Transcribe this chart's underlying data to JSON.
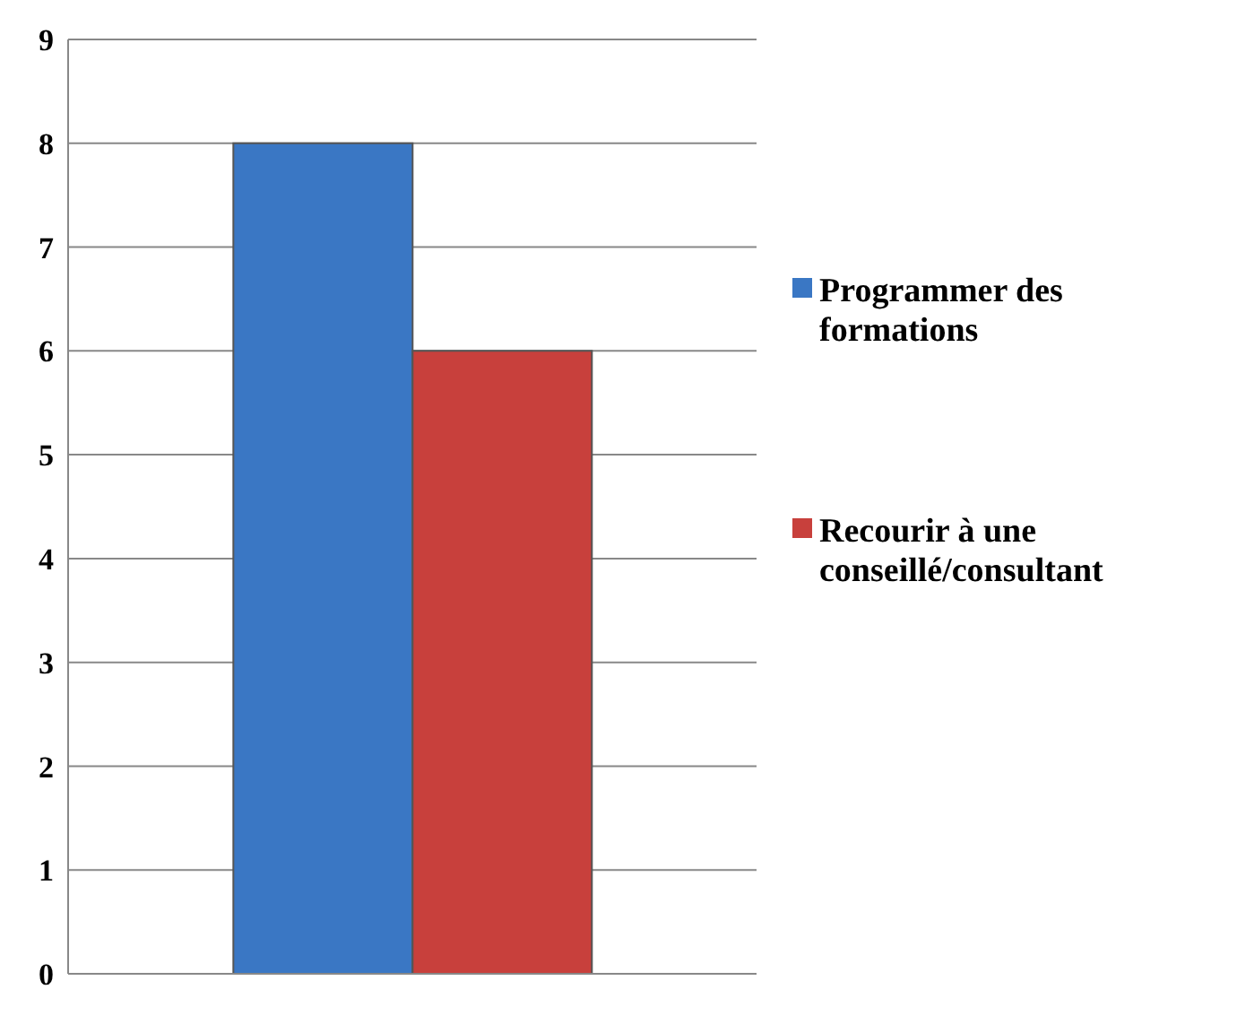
{
  "chart_data": {
    "type": "bar",
    "categories": [
      null
    ],
    "series": [
      {
        "name": "Programmer des formations",
        "color": "#3a77c4",
        "values": [
          8
        ]
      },
      {
        "name": "Recourir à une conseillé/consultant",
        "color": "#c8403c",
        "values": [
          6
        ]
      }
    ],
    "ylim": [
      0,
      9
    ],
    "yticks": [
      0,
      1,
      2,
      3,
      4,
      5,
      6,
      7,
      8,
      9
    ],
    "grid": "y",
    "legend": "right"
  }
}
